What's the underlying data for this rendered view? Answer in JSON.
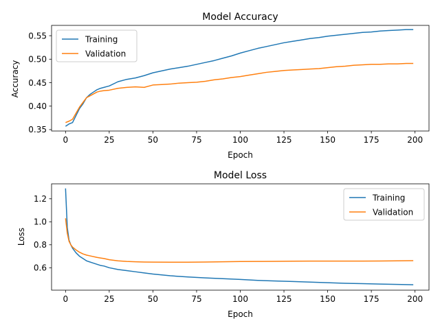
{
  "chart_data": [
    {
      "type": "line",
      "title": "Model Accuracy",
      "xlabel": "Epoch",
      "ylabel": "Accuracy",
      "xlim": [
        -8,
        208
      ],
      "ylim": [
        0.347,
        0.572
      ],
      "xticks": [
        0,
        25,
        50,
        75,
        100,
        125,
        150,
        175,
        200
      ],
      "yticks": [
        0.35,
        0.4,
        0.45,
        0.5,
        0.55
      ],
      "ytick_labels": [
        "0.35",
        "0.40",
        "0.45",
        "0.50",
        "0.55"
      ],
      "grid": false,
      "legend": "top-left",
      "x": [
        0,
        2,
        4,
        6,
        8,
        10,
        12,
        14,
        16,
        18,
        20,
        22,
        25,
        30,
        35,
        40,
        45,
        50,
        55,
        60,
        65,
        70,
        75,
        80,
        85,
        90,
        95,
        100,
        105,
        110,
        115,
        120,
        125,
        130,
        135,
        140,
        145,
        150,
        155,
        160,
        165,
        170,
        175,
        180,
        185,
        190,
        195,
        199
      ],
      "series": [
        {
          "name": "Training",
          "color": "#1f77b4",
          "values": [
            0.357,
            0.362,
            0.365,
            0.38,
            0.395,
            0.405,
            0.418,
            0.425,
            0.43,
            0.435,
            0.438,
            0.44,
            0.443,
            0.452,
            0.457,
            0.46,
            0.465,
            0.471,
            0.475,
            0.479,
            0.482,
            0.485,
            0.489,
            0.493,
            0.497,
            0.502,
            0.507,
            0.513,
            0.518,
            0.523,
            0.527,
            0.531,
            0.535,
            0.538,
            0.541,
            0.544,
            0.546,
            0.549,
            0.551,
            0.553,
            0.555,
            0.557,
            0.558,
            0.56,
            0.561,
            0.562,
            0.563,
            0.563
          ]
        },
        {
          "name": "Validation",
          "color": "#ff7f0e",
          "values": [
            0.365,
            0.368,
            0.372,
            0.385,
            0.398,
            0.408,
            0.418,
            0.422,
            0.426,
            0.43,
            0.432,
            0.433,
            0.434,
            0.438,
            0.44,
            0.441,
            0.44,
            0.445,
            0.446,
            0.447,
            0.449,
            0.45,
            0.451,
            0.453,
            0.456,
            0.458,
            0.461,
            0.463,
            0.466,
            0.469,
            0.472,
            0.474,
            0.476,
            0.477,
            0.478,
            0.479,
            0.48,
            0.482,
            0.484,
            0.485,
            0.487,
            0.488,
            0.489,
            0.489,
            0.49,
            0.49,
            0.491,
            0.491
          ]
        }
      ]
    },
    {
      "type": "line",
      "title": "Model Loss",
      "xlabel": "Epoch",
      "ylabel": "Loss",
      "xlim": [
        -8,
        208
      ],
      "ylim": [
        0.405,
        1.33
      ],
      "xticks": [
        0,
        25,
        50,
        75,
        100,
        125,
        150,
        175,
        200
      ],
      "yticks": [
        0.6,
        0.8,
        1.0,
        1.2
      ],
      "ytick_labels": [
        "0.6",
        "0.8",
        "1.0",
        "1.2"
      ],
      "grid": false,
      "legend": "top-right",
      "x": [
        0,
        1,
        2,
        3,
        4,
        6,
        8,
        10,
        12,
        15,
        18,
        20,
        22,
        25,
        30,
        35,
        40,
        45,
        50,
        60,
        70,
        80,
        90,
        100,
        110,
        120,
        130,
        140,
        150,
        160,
        170,
        180,
        190,
        199
      ],
      "series": [
        {
          "name": "Training",
          "color": "#1f77b4",
          "values": [
            1.29,
            0.95,
            0.84,
            0.8,
            0.77,
            0.73,
            0.7,
            0.68,
            0.66,
            0.645,
            0.63,
            0.62,
            0.615,
            0.6,
            0.585,
            0.575,
            0.565,
            0.555,
            0.545,
            0.53,
            0.52,
            0.512,
            0.505,
            0.498,
            0.49,
            0.485,
            0.48,
            0.475,
            0.47,
            0.465,
            0.462,
            0.458,
            0.455,
            0.452
          ]
        },
        {
          "name": "Validation",
          "color": "#ff7f0e",
          "values": [
            1.03,
            0.9,
            0.83,
            0.8,
            0.78,
            0.755,
            0.735,
            0.72,
            0.71,
            0.7,
            0.69,
            0.685,
            0.68,
            0.67,
            0.66,
            0.655,
            0.652,
            0.65,
            0.649,
            0.648,
            0.648,
            0.65,
            0.652,
            0.654,
            0.655,
            0.656,
            0.657,
            0.658,
            0.658,
            0.658,
            0.658,
            0.659,
            0.66,
            0.662
          ]
        }
      ]
    }
  ]
}
